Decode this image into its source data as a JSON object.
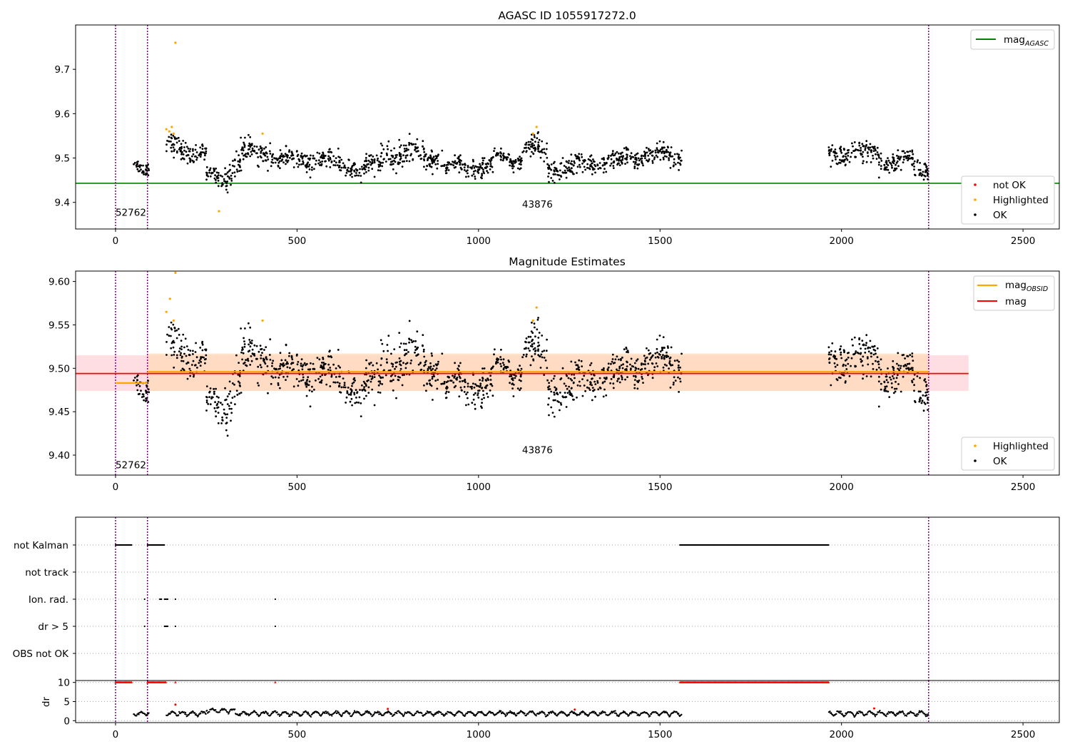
{
  "chart_data": [
    {
      "type": "scatter",
      "title": "AGASC ID 1055917272.0",
      "xlabel": "",
      "ylabel": "",
      "xlim": [
        -110,
        2600
      ],
      "ylim": [
        9.34,
        9.8
      ],
      "x_ticks": [
        "0",
        "500",
        "1000",
        "1500",
        "2000",
        "2500"
      ],
      "y_ticks": [
        "9.4",
        "9.5",
        "9.6",
        "9.7"
      ],
      "vlines": [
        0,
        88,
        2240
      ],
      "hlines": [
        {
          "name": "mag_AGASC",
          "label_base": "mag",
          "label_sub": "AGASC",
          "y": 9.443,
          "color": "#008000"
        }
      ],
      "text_annotations": [
        {
          "text": "52762",
          "x": 0,
          "y": 9.37
        },
        {
          "text": "43876",
          "x": 1120,
          "y": 9.388
        }
      ],
      "legend_lines_position": "upper right",
      "legend_points_position": "lower right",
      "series": [
        {
          "name": "not OK",
          "color": "#ff0000",
          "values": []
        },
        {
          "name": "Highlighted",
          "color": "#ffa500",
          "values": [
            [
              140,
              9.565
            ],
            [
              148,
              9.56
            ],
            [
              155,
              9.57
            ],
            [
              160,
              9.555
            ],
            [
              165,
              9.76
            ],
            [
              285,
              9.38
            ],
            [
              405,
              9.555
            ],
            [
              1150,
              9.555
            ],
            [
              1160,
              9.57
            ]
          ]
        },
        {
          "name": "OK",
          "color": "#000000",
          "values": "dense scatter of ~2000 points between 9.44 and 9.56"
        }
      ]
    },
    {
      "type": "scatter",
      "title": "Magnitude Estimates",
      "xlabel": "",
      "ylabel": "",
      "xlim": [
        -110,
        2600
      ],
      "ylim": [
        9.377,
        9.612
      ],
      "x_ticks": [
        "0",
        "500",
        "1000",
        "1500",
        "2000",
        "2500"
      ],
      "y_ticks": [
        "9.40",
        "9.45",
        "9.50",
        "9.55",
        "9.60"
      ],
      "vlines": [
        0,
        88,
        2240
      ],
      "bands": [
        {
          "x0": -110,
          "x1": 2350,
          "y0": 9.474,
          "y1": 9.515,
          "color": "#ffb6c1"
        },
        {
          "x0": 88,
          "x1": 2240,
          "y0": 9.474,
          "y1": 9.517,
          "color": "#ffdab9"
        }
      ],
      "hlines": [
        {
          "name": "mag_OBSID",
          "label_base": "mag",
          "label_sub": "OBSID",
          "segments": [
            [
              0,
              88,
              9.483
            ],
            [
              88,
              2240,
              9.496
            ]
          ],
          "color": "#ffa500"
        },
        {
          "name": "mag",
          "label_base": "mag",
          "label_sub": "",
          "x0": -110,
          "x1": 2350,
          "y": 9.494,
          "color": "#ff0000"
        }
      ],
      "text_annotations": [
        {
          "text": "52762",
          "x": 0,
          "y": 9.385
        },
        {
          "text": "43876",
          "x": 1120,
          "y": 9.402
        }
      ],
      "legend_lines_position": "upper right",
      "legend_points_position": "lower right",
      "series": [
        {
          "name": "Highlighted",
          "color": "#ffa500",
          "values": [
            [
              140,
              9.565
            ],
            [
              150,
              9.58
            ],
            [
              160,
              9.555
            ],
            [
              165,
              9.61
            ],
            [
              405,
              9.555
            ],
            [
              1150,
              9.555
            ],
            [
              1160,
              9.57
            ]
          ]
        },
        {
          "name": "OK",
          "color": "#000000",
          "values": "dense scatter of ~2000 points between 9.44 and 9.55"
        }
      ]
    },
    {
      "type": "scatter",
      "title": "",
      "xlabel": "",
      "ylabel": "",
      "xlim": [
        -110,
        2600
      ],
      "categories": [
        "not Kalman",
        "not track",
        "Ion. rad.",
        "dr > 5",
        "OBS not OK"
      ],
      "flag_ranges": {
        "not Kalman": [
          [
            0,
            45
          ],
          [
            88,
            135
          ],
          [
            1555,
            1965
          ]
        ],
        "not track": [],
        "Ion. rad.": [
          [
            80,
            80
          ],
          [
            122,
            128
          ],
          [
            135,
            145
          ],
          [
            165,
            165
          ],
          [
            440,
            440
          ]
        ],
        "dr > 5": [
          [
            80,
            80
          ],
          [
            135,
            145
          ],
          [
            165,
            165
          ],
          [
            440,
            440
          ]
        ],
        "OBS not OK": []
      },
      "series": [
        {
          "name": "flags",
          "color": "#000000"
        }
      ]
    },
    {
      "type": "scatter",
      "title": "",
      "xlabel": "",
      "ylabel": "dr",
      "xlim": [
        -110,
        2600
      ],
      "ylim": [
        -0.5,
        10.5
      ],
      "y_ticks": [
        "0",
        "5",
        "10"
      ],
      "x_ticks": [
        "0",
        "500",
        "1000",
        "1500",
        "2000",
        "2500"
      ],
      "markers_at_10": [
        [
          0,
          45
        ],
        [
          88,
          140
        ],
        [
          165,
          165
        ],
        [
          440,
          440
        ],
        [
          1555,
          1965
        ]
      ],
      "series": [
        {
          "name": "OK",
          "color": "#000000",
          "values": "dr between 0 and 3 across observations"
        },
        {
          "name": "not OK",
          "color": "#ff0000",
          "values": [
            [
              750,
              3.1
            ],
            [
              1265,
              2.9
            ],
            [
              2090,
              3.2
            ],
            [
              165,
              4.2
            ]
          ]
        }
      ]
    }
  ]
}
